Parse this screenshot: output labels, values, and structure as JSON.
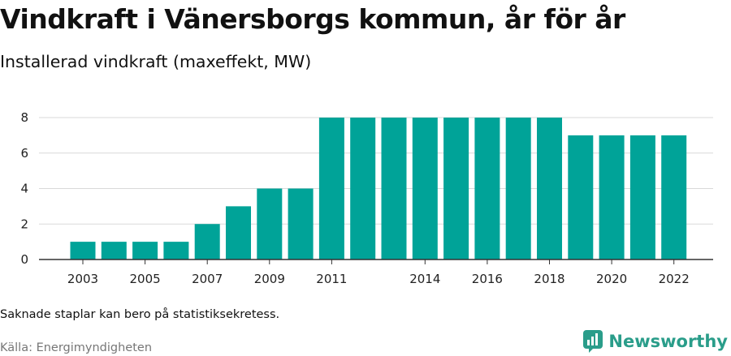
{
  "title": "Vindkraft i Vänersborgs kommun, år för år",
  "subtitle": "Installerad vindkraft (maxeffekt, MW)",
  "note": "Saknade staplar kan bero på statistiksekretess.",
  "source": "Källa: Energimyndigheten",
  "brand": {
    "name": "Newsworthy",
    "color": "#2a9d8a",
    "icon": "newsworthy-logo-icon"
  },
  "chart_data": {
    "type": "bar",
    "categories": [
      "2003",
      "2004",
      "2005",
      "2006",
      "2007",
      "2008",
      "2009",
      "2010",
      "2011",
      "2012",
      "2013",
      "2014",
      "2015",
      "2016",
      "2017",
      "2018",
      "2019",
      "2020",
      "2021",
      "2022"
    ],
    "values": [
      1,
      1,
      1,
      1,
      2,
      3,
      4,
      4,
      8,
      8,
      8,
      8,
      8,
      8,
      8,
      8,
      7,
      7,
      7,
      7
    ],
    "x_tick_labels": [
      "2003",
      "2005",
      "2007",
      "2009",
      "2011",
      "2014",
      "2016",
      "2018",
      "2020",
      "2022"
    ],
    "y_ticks": [
      0,
      2,
      4,
      6,
      8
    ],
    "ylim": [
      0,
      8
    ],
    "xlabel": "",
    "ylabel": "",
    "grid": true,
    "bar_color": "#00a398"
  }
}
